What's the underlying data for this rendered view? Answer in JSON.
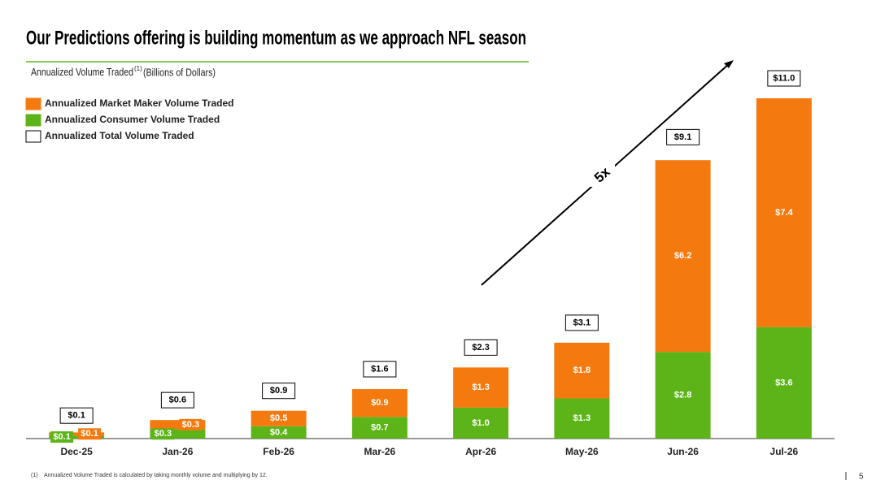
{
  "title": "Our Predictions offering is building momentum as we approach NFL season",
  "subtitle": {
    "text": "Annualized Volume Traded",
    "superscript": "(1)",
    "unit": "(Billions of Dollars)"
  },
  "chart_data": {
    "type": "stacked_bar",
    "categories": [
      "Dec-25",
      "Jan-26",
      "Feb-26",
      "Mar-26",
      "Apr-26",
      "May-26",
      "Jun-26",
      "Jul-26"
    ],
    "series": [
      {
        "name": "Annualized Consumer Volume Traded",
        "color": "#5db418",
        "values": [
          0.1,
          0.3,
          0.4,
          0.7,
          1.0,
          1.3,
          2.8,
          3.6
        ],
        "value_labels": [
          "$0.1",
          "$0.3",
          "$0.4",
          "$0.7",
          "$1.0",
          "$1.3",
          "$2.8",
          "$3.6"
        ]
      },
      {
        "name": "Annualized Market Maker Volume Traded",
        "color": "#f47a10",
        "values": [
          0.1,
          0.3,
          0.5,
          0.9,
          1.3,
          1.8,
          6.2,
          7.4
        ],
        "value_labels": [
          "$0.1",
          "$0.3",
          "$0.5",
          "$0.9",
          "$1.3",
          "$1.8",
          "$6.2",
          "$7.4"
        ]
      }
    ],
    "totals": {
      "name": "Annualized Total Volume Traded",
      "color": "#ffffff",
      "values": [
        0.1,
        0.6,
        0.9,
        1.6,
        2.3,
        3.1,
        9.1,
        11.0
      ],
      "value_labels": [
        "$0.1",
        "$0.6",
        "$0.9",
        "$1.6",
        "$2.3",
        "$3.1",
        "$9.1",
        "$11.0"
      ]
    },
    "ylim": [
      0,
      11
    ],
    "annotation": "5x"
  },
  "footnote": {
    "marker": "(1)",
    "text": "Annualized Volume Traded is calculated by taking monthly volume and multiplying by 12."
  },
  "page_number": "5"
}
